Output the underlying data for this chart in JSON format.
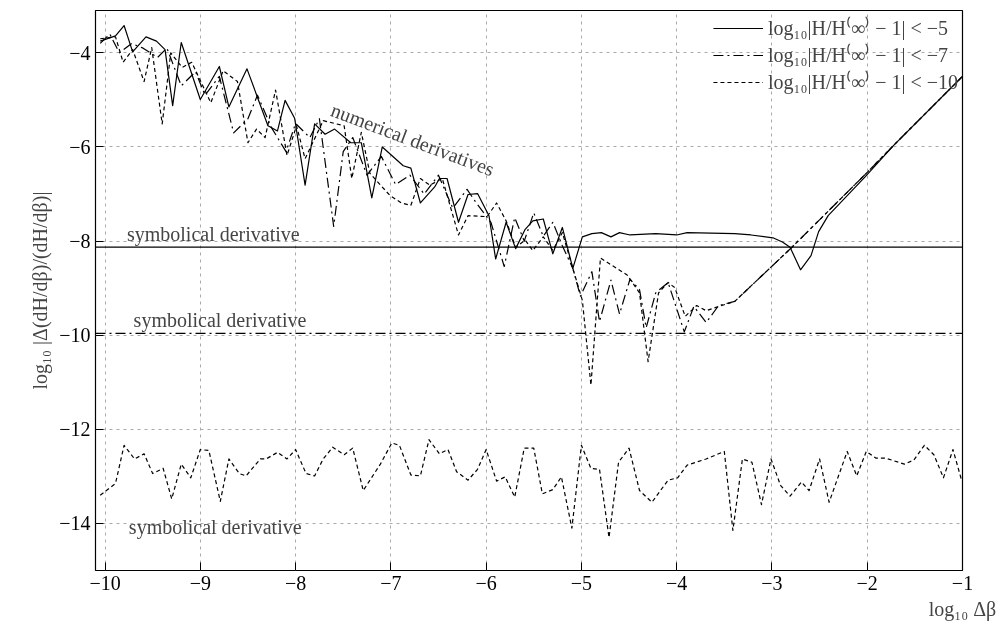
{
  "chart_data": {
    "type": "line",
    "xlabel": "log₁₀ Δβ",
    "ylabel": "log₁₀ |Δ(dH/dβ)/(dH/dβ)|",
    "xlim": [
      -10.1,
      -1
    ],
    "ylim": [
      -15,
      -3.1
    ],
    "xticks": [
      {
        "value": -10,
        "label": "−10"
      },
      {
        "value": -9,
        "label": "−9"
      },
      {
        "value": -8,
        "label": "−8"
      },
      {
        "value": -7,
        "label": "−7"
      },
      {
        "value": -6,
        "label": "−6"
      },
      {
        "value": -5,
        "label": "−5"
      },
      {
        "value": -4,
        "label": "−4"
      },
      {
        "value": -3,
        "label": "−3"
      },
      {
        "value": -2,
        "label": "−2"
      },
      {
        "value": -1,
        "label": "−1"
      }
    ],
    "yticks": [
      {
        "value": -14,
        "label": "−14"
      },
      {
        "value": -12,
        "label": "−12"
      },
      {
        "value": -10,
        "label": "−10"
      },
      {
        "value": -8,
        "label": "−8"
      },
      {
        "value": -6,
        "label": "−6"
      },
      {
        "value": -4,
        "label": "−4"
      }
    ],
    "grid": true,
    "legend": "top right",
    "series": [
      {
        "name": "log₁₀|H/H⁽∞⁾ − 1| < −5",
        "color": "#000000",
        "line_style": "solid",
        "x": [
          -10.05,
          -9.89,
          -9.8,
          -9.71,
          -9.57,
          -9.46,
          -9.37,
          -9.29,
          -9.2,
          -9.0,
          -8.8,
          -8.7,
          -8.51,
          -8.29,
          -8.19,
          -8.11,
          -8.01,
          -7.9,
          -7.8,
          -7.69,
          -7.59,
          -7.42,
          -7.31,
          -7.2,
          -7.09,
          -6.87,
          -6.79,
          -6.69,
          -6.54,
          -6.49,
          -6.41,
          -6.29,
          -6.19,
          -6.09,
          -5.97,
          -5.9,
          -5.79,
          -5.69,
          -5.59,
          -5.51,
          -5.4,
          -5.3,
          -5.2,
          -5.09,
          -4.99,
          -4.89,
          -4.79,
          -4.69,
          -4.6,
          -4.49,
          -4.22,
          -4.0,
          -3.89,
          -3.39,
          -3.22,
          -2.99,
          -2.89,
          -2.81,
          -2.7,
          -2.59,
          -2.51,
          -2.41,
          -2.02,
          -1.72,
          -1.0
        ],
        "values": [
          -3.75,
          -3.64,
          -3.42,
          -3.98,
          -3.66,
          -3.75,
          -3.93,
          -5.12,
          -3.78,
          -4.99,
          -4.29,
          -5.15,
          -4.34,
          -5.55,
          -5.66,
          -5.01,
          -5.39,
          -6.81,
          -5.51,
          -5.73,
          -5.62,
          -5.91,
          -5.91,
          -7.08,
          -6.0,
          -6.4,
          -6.45,
          -7.19,
          -6.85,
          -6.67,
          -6.67,
          -7.6,
          -7.01,
          -6.99,
          -7.46,
          -8.38,
          -7.6,
          -8.16,
          -7.75,
          -7.57,
          -7.53,
          -8.27,
          -7.71,
          -8.58,
          -7.91,
          -7.84,
          -7.82,
          -7.91,
          -7.82,
          -7.87,
          -7.84,
          -7.87,
          -7.82,
          -7.84,
          -7.87,
          -7.93,
          -8.02,
          -8.13,
          -8.61,
          -8.31,
          -7.8,
          -7.46,
          -6.63,
          -5.96,
          -4.5
        ]
      },
      {
        "name": "log₁₀|H/H⁽∞⁾ − 1| < −7",
        "color": "#000000",
        "line_style": "dashdot",
        "x": [
          -10.05,
          -9.95,
          -9.85,
          -9.72,
          -9.6,
          -9.45,
          -9.35,
          -9.2,
          -9.05,
          -8.95,
          -8.8,
          -8.65,
          -8.5,
          -8.4,
          -8.25,
          -8.1,
          -8.0,
          -7.85,
          -7.75,
          -7.6,
          -7.5,
          -7.4,
          -7.25,
          -7.1,
          -6.95,
          -6.8,
          -6.65,
          -6.5,
          -6.35,
          -6.2,
          -6.1,
          -5.95,
          -5.81,
          -5.7,
          -5.6,
          -5.5,
          -5.4,
          -5.3,
          -5.2,
          -5.09,
          -5.01,
          -4.89,
          -4.81,
          -4.69,
          -4.6,
          -4.49,
          -4.39,
          -4.32,
          -4.22,
          -4.09,
          -3.92,
          -3.82,
          -3.69,
          -3.56,
          -3.39,
          -2.79,
          -2.02,
          -1.72,
          -1.0
        ],
        "values": [
          -3.8,
          -3.6,
          -4.0,
          -3.8,
          -3.9,
          -4.1,
          -3.9,
          -4.7,
          -4.4,
          -4.9,
          -4.5,
          -5.7,
          -5.4,
          -4.9,
          -5.6,
          -6.1,
          -5.5,
          -5.8,
          -5.4,
          -7.69,
          -6.1,
          -5.8,
          -6.6,
          -6.2,
          -6.8,
          -6.6,
          -7.0,
          -6.6,
          -7.3,
          -6.9,
          -7.2,
          -7.6,
          -8.54,
          -7.5,
          -8.0,
          -7.4,
          -7.9,
          -7.6,
          -8.1,
          -8.58,
          -9.17,
          -8.65,
          -9.71,
          -8.83,
          -9.55,
          -8.81,
          -9.03,
          -9.84,
          -9.1,
          -8.88,
          -9.93,
          -9.39,
          -9.73,
          -9.37,
          -9.28,
          -8.13,
          -6.58,
          -5.96,
          -4.5
        ]
      },
      {
        "name": "log₁₀|H/H⁽∞⁾ − 1| < −10",
        "color": "#000000",
        "line_style": "dashed",
        "x": [
          -10.05,
          -9.89,
          -9.81,
          -9.71,
          -9.59,
          -9.51,
          -9.4,
          -9.31,
          -9.19,
          -9.09,
          -8.89,
          -8.76,
          -8.61,
          -8.5,
          -8.41,
          -8.32,
          -8.21,
          -8.09,
          -7.99,
          -7.9,
          -7.71,
          -7.49,
          -7.41,
          -7.31,
          -7.22,
          -7.01,
          -6.89,
          -6.79,
          -6.69,
          -6.59,
          -6.46,
          -6.29,
          -6.19,
          -5.99,
          -5.89,
          -5.79,
          -5.69,
          -5.59,
          -5.51,
          -5.4,
          -5.3,
          -5.2,
          -5.09,
          -4.99,
          -4.9,
          -4.8,
          -4.52,
          -4.39,
          -4.3,
          -4.19,
          -4.09,
          -4.02,
          -3.91,
          -3.79,
          -3.69,
          -3.56,
          -3.39,
          -2.79,
          -2.02,
          -1.72,
          -1.0
        ],
        "values": [
          -3.7,
          -3.66,
          -4.2,
          -3.93,
          -4.61,
          -3.89,
          -5.51,
          -4.0,
          -4.31,
          -4.2,
          -5.06,
          -4.38,
          -4.61,
          -5.91,
          -5.62,
          -5.8,
          -4.79,
          -6.18,
          -5.55,
          -6.25,
          -5.44,
          -5.55,
          -6.67,
          -5.69,
          -6.56,
          -7.03,
          -7.19,
          -7.24,
          -6.67,
          -6.81,
          -6.67,
          -7.87,
          -7.46,
          -7.48,
          -7.19,
          -7.57,
          -8.13,
          -7.98,
          -8.2,
          -7.91,
          -8.2,
          -7.82,
          -8.58,
          -9.26,
          -11.06,
          -8.36,
          -8.72,
          -9.1,
          -10.56,
          -9.1,
          -8.88,
          -8.99,
          -9.6,
          -9.37,
          -9.48,
          -9.39,
          -9.28,
          -8.13,
          -6.58,
          -5.96,
          -4.5
        ]
      },
      {
        "color": "#000000",
        "line_style": "solid",
        "x": [
          -10.1,
          -1.0
        ],
        "values": [
          -8.13,
          -8.13
        ]
      },
      {
        "color": "#000000",
        "line_style": "dashdot",
        "x": [
          -10.1,
          -1.0
        ],
        "values": [
          -9.96,
          -9.96
        ]
      },
      {
        "color": "#000000",
        "line_style": "dashed",
        "x": [
          -10.05,
          -9.89,
          -9.8,
          -9.69,
          -9.59,
          -9.5,
          -9.39,
          -9.3,
          -9.2,
          -9.1,
          -9.0,
          -8.91,
          -8.79,
          -8.7,
          -8.59,
          -8.52,
          -8.37,
          -8.31,
          -8.19,
          -8.09,
          -8.0,
          -7.89,
          -7.8,
          -7.71,
          -7.61,
          -7.49,
          -7.4,
          -7.29,
          -7.11,
          -6.99,
          -6.91,
          -6.79,
          -6.69,
          -6.6,
          -6.49,
          -6.4,
          -6.31,
          -6.19,
          -6.09,
          -6.0,
          -5.89,
          -5.8,
          -5.7,
          -5.6,
          -5.5,
          -5.41,
          -5.3,
          -5.21,
          -5.1,
          -5.0,
          -4.9,
          -4.81,
          -4.71,
          -4.61,
          -4.5,
          -4.39,
          -4.26,
          -4.09,
          -3.99,
          -3.89,
          -3.69,
          -3.5,
          -3.41,
          -3.31,
          -3.21,
          -3.11,
          -3.01,
          -2.91,
          -2.81,
          -2.69,
          -2.61,
          -2.5,
          -2.4,
          -2.21,
          -2.11,
          -2.01,
          -1.91,
          -1.81,
          -1.61,
          -1.51,
          -1.4,
          -1.3,
          -1.2,
          -1.1,
          -1.01
        ],
        "values": [
          -13.4,
          -13.15,
          -12.34,
          -12.63,
          -12.52,
          -12.94,
          -12.83,
          -13.48,
          -12.74,
          -13.03,
          -12.43,
          -12.45,
          -13.53,
          -12.63,
          -12.94,
          -12.99,
          -12.63,
          -12.63,
          -12.49,
          -12.63,
          -12.43,
          -12.94,
          -12.99,
          -12.63,
          -12.38,
          -12.54,
          -12.4,
          -13.3,
          -12.74,
          -12.29,
          -12.34,
          -12.97,
          -12.99,
          -12.22,
          -12.52,
          -12.43,
          -12.9,
          -13.08,
          -12.85,
          -12.43,
          -13.1,
          -13.01,
          -13.44,
          -12.4,
          -12.4,
          -13.37,
          -13.28,
          -13.01,
          -14.1,
          -12.34,
          -12.83,
          -12.85,
          -14.3,
          -12.7,
          -12.4,
          -13.3,
          -13.55,
          -13.08,
          -13.03,
          -12.76,
          -12.63,
          -12.47,
          -14.15,
          -12.63,
          -12.7,
          -13.6,
          -12.63,
          -13.19,
          -13.42,
          -13.12,
          -13.3,
          -12.63,
          -13.55,
          -12.47,
          -12.99,
          -12.47,
          -12.61,
          -12.61,
          -12.74,
          -12.65,
          -12.34,
          -12.54,
          -13.03,
          -12.43,
          -13.08
        ]
      }
    ],
    "annotations": [
      "numerical derivatives",
      {
        "text": "symbolical derivative",
        "x": -9.77,
        "y": -8.13
      },
      {
        "text": "symbolical derivative",
        "x": -9.7,
        "y": -9.96
      },
      "symbolical derivative"
    ]
  }
}
